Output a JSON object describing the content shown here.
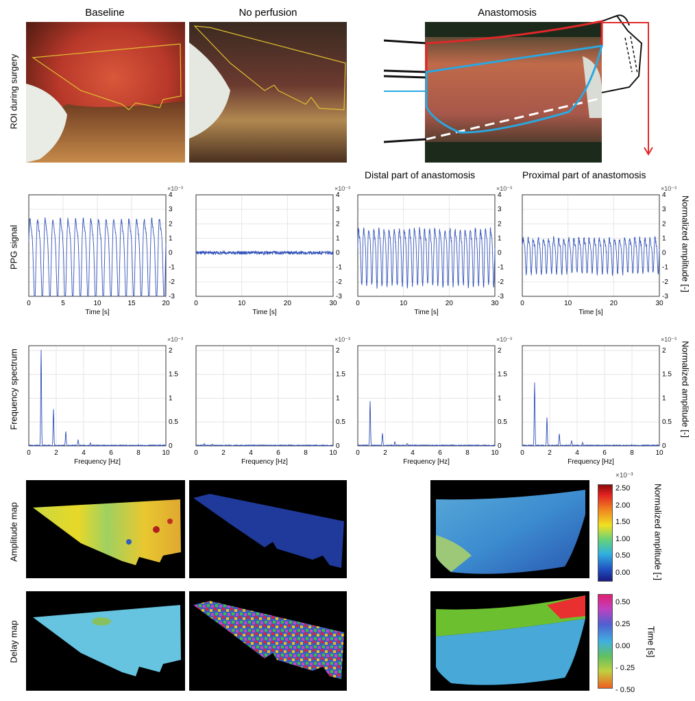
{
  "columns": {
    "baseline": "Baseline",
    "no_perfusion": "No perfusion",
    "anastomosis": "Anastomosis"
  },
  "row_labels": {
    "roi": "ROI during surgery",
    "ppg": "PPG signal",
    "freq": "Frequency spectrum",
    "amp": "Amplitude map",
    "delay": "Delay map"
  },
  "sub_titles": {
    "distal": "Distal part of anastomosis",
    "proximal": "Proximal part of anastomosis"
  },
  "right_labels": {
    "ppg": "Normalized amplitude [-]",
    "freq": "Normalized amplitude [-]"
  },
  "colorbars": {
    "amplitude": {
      "exponent": "×10⁻³",
      "label": "Normalized amplitude [-]",
      "ticks": [
        "2.50",
        "2.00",
        "1.50",
        "1.00",
        "0.50",
        "0.00"
      ]
    },
    "delay": {
      "label": "Time [s]",
      "ticks": [
        "0.50",
        "0.25",
        "0.00",
        "- 0.25",
        "- 0.50"
      ]
    }
  },
  "chart_data": [
    {
      "id": "ppg-baseline",
      "type": "line",
      "xlabel": "Time [s]",
      "xlim": [
        0,
        20
      ],
      "ylim": [
        -3,
        4
      ],
      "exponent": "×10⁻³",
      "x_ticks": [
        0,
        5,
        10,
        15,
        20
      ],
      "y_ticks": [
        4,
        3,
        2,
        1,
        0,
        -1,
        -2,
        -3
      ],
      "signal": {
        "freq_hz": 0.9,
        "amplitude": 2.6,
        "noise": 0.15
      }
    },
    {
      "id": "ppg-noperf",
      "type": "line",
      "xlabel": "Time [s]",
      "xlim": [
        0,
        30
      ],
      "ylim": [
        -3,
        4
      ],
      "exponent": "×10⁻³",
      "x_ticks": [
        0,
        10,
        20,
        30
      ],
      "y_ticks": [
        4,
        3,
        2,
        1,
        0,
        -1,
        -2,
        -3
      ],
      "signal": {
        "freq_hz": 0,
        "amplitude": 0,
        "noise": 0.12
      }
    },
    {
      "id": "ppg-distal",
      "type": "line",
      "xlabel": "Time [s]",
      "xlim": [
        0,
        30
      ],
      "ylim": [
        -3,
        4
      ],
      "exponent": "×10⁻³",
      "x_ticks": [
        0,
        10,
        20,
        30
      ],
      "y_ticks": [
        4,
        3,
        2,
        1,
        0,
        -1,
        -2,
        -3
      ],
      "signal": {
        "freq_hz": 0.9,
        "amplitude": 1.8,
        "noise": 0.2
      }
    },
    {
      "id": "ppg-proximal",
      "type": "line",
      "xlabel": "Time [s]",
      "xlim": [
        0,
        30
      ],
      "ylim": [
        -3,
        4
      ],
      "exponent": "×10⁻³",
      "x_ticks": [
        0,
        10,
        20,
        30
      ],
      "y_ticks": [
        4,
        3,
        2,
        1,
        0,
        -1,
        -2,
        -3
      ],
      "signal": {
        "freq_hz": 0.9,
        "amplitude": 1.1,
        "noise": 0.18
      }
    },
    {
      "id": "fft-baseline",
      "type": "line",
      "xlabel": "Frequency [Hz]",
      "xlim": [
        0,
        10
      ],
      "ylim": [
        0,
        2.1
      ],
      "exponent": "×10⁻³",
      "x_ticks": [
        0,
        2,
        4,
        6,
        8,
        10
      ],
      "y_ticks": [
        2,
        1.5,
        1,
        0.5,
        0
      ],
      "peaks": [
        [
          0.9,
          2.0
        ],
        [
          1.8,
          0.75
        ],
        [
          2.7,
          0.3
        ],
        [
          3.6,
          0.12
        ],
        [
          4.5,
          0.05
        ]
      ]
    },
    {
      "id": "fft-noperf",
      "type": "line",
      "xlabel": "Frequency [Hz]",
      "xlim": [
        0,
        10
      ],
      "ylim": [
        0,
        2.1
      ],
      "exponent": "×10⁻³",
      "x_ticks": [
        0,
        2,
        4,
        6,
        8,
        10
      ],
      "y_ticks": [
        2,
        1.5,
        1,
        0.5,
        0
      ],
      "peaks": [
        [
          0.6,
          0.03
        ],
        [
          1.2,
          0.02
        ]
      ]
    },
    {
      "id": "fft-distal",
      "type": "line",
      "xlabel": "Frequency [Hz]",
      "xlim": [
        0,
        10
      ],
      "ylim": [
        0,
        2.1
      ],
      "exponent": "×10⁻³",
      "x_ticks": [
        0,
        2,
        4,
        6,
        8,
        10
      ],
      "y_ticks": [
        2,
        1.5,
        1,
        0.5,
        0
      ],
      "peaks": [
        [
          0.9,
          0.92
        ],
        [
          1.8,
          0.25
        ],
        [
          2.7,
          0.08
        ],
        [
          3.6,
          0.04
        ]
      ]
    },
    {
      "id": "fft-proximal",
      "type": "line",
      "xlabel": "Frequency [Hz]",
      "xlim": [
        0,
        10
      ],
      "ylim": [
        0,
        2.1
      ],
      "exponent": "×10⁻³",
      "x_ticks": [
        0,
        2,
        4,
        6,
        8,
        10
      ],
      "y_ticks": [
        2,
        1.5,
        1,
        0.5,
        0
      ],
      "peaks": [
        [
          0.9,
          1.32
        ],
        [
          1.8,
          0.58
        ],
        [
          2.7,
          0.25
        ],
        [
          3.6,
          0.1
        ],
        [
          4.4,
          0.06
        ]
      ]
    }
  ]
}
